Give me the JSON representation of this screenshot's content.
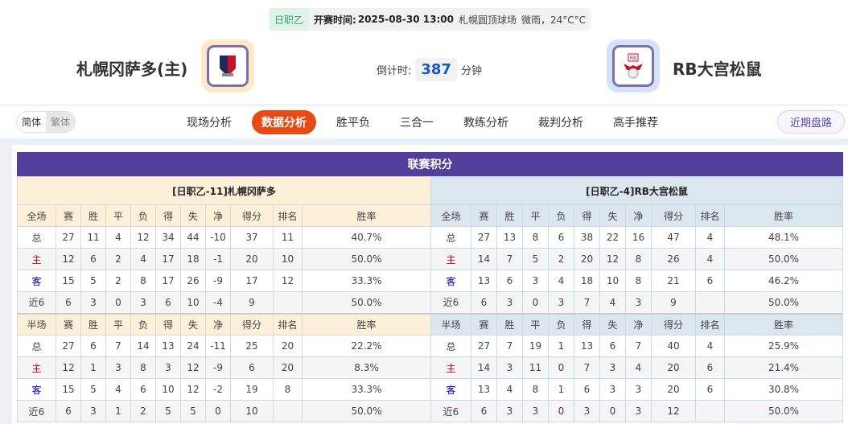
{
  "match": {
    "league": "日职乙",
    "kickoff_label": "开赛时间:",
    "kickoff": "2025-08-30 13:00",
    "venue": "札幌圆顶球场",
    "weather": "微雨，24°C°C"
  },
  "home": {
    "name": "札幌冈萨多(主)",
    "logo": "consadole-sapporo-crest"
  },
  "away": {
    "name": "RB大宫松鼠",
    "logo": "rb-omiya-crest"
  },
  "countdown": {
    "label": "倒计时:",
    "value": "387",
    "unit": "分钟"
  },
  "lang": {
    "simplified": "简体",
    "traditional": "繁体"
  },
  "tabs": [
    "现场分析",
    "数据分析",
    "胜平负",
    "三合一",
    "教练分析",
    "裁判分析",
    "高手推荐"
  ],
  "active_tab": 1,
  "recent_button": "近期盘路",
  "section_title": "联赛积分",
  "colors": {
    "accent": "#e84a16",
    "title_bar": "#533f9b",
    "home_header": "#fdf0d8",
    "away_header": "#dbe6ee"
  },
  "columns_full": [
    "全场",
    "赛",
    "胜",
    "平",
    "负",
    "得",
    "失",
    "净",
    "得分",
    "排名",
    "胜率"
  ],
  "columns_half": [
    "半场",
    "赛",
    "胜",
    "平",
    "负",
    "得",
    "失",
    "净",
    "得分",
    "排名",
    "胜率"
  ],
  "home_table": {
    "title": "[日职乙-11]札幌冈萨多",
    "full": [
      [
        "总",
        "27",
        "11",
        "4",
        "12",
        "34",
        "44",
        "-10",
        "37",
        "11",
        "40.7%"
      ],
      [
        "主",
        "12",
        "6",
        "2",
        "4",
        "17",
        "18",
        "-1",
        "20",
        "10",
        "50.0%"
      ],
      [
        "客",
        "15",
        "5",
        "2",
        "8",
        "17",
        "26",
        "-9",
        "17",
        "12",
        "33.3%"
      ],
      [
        "近6",
        "6",
        "3",
        "0",
        "3",
        "6",
        "10",
        "-4",
        "9",
        "",
        "50.0%"
      ]
    ],
    "half": [
      [
        "总",
        "27",
        "6",
        "7",
        "14",
        "13",
        "24",
        "-11",
        "25",
        "20",
        "22.2%"
      ],
      [
        "主",
        "12",
        "1",
        "3",
        "8",
        "3",
        "12",
        "-9",
        "6",
        "20",
        "8.3%"
      ],
      [
        "客",
        "15",
        "5",
        "4",
        "6",
        "10",
        "12",
        "-2",
        "19",
        "8",
        "33.3%"
      ],
      [
        "近6",
        "6",
        "3",
        "1",
        "2",
        "5",
        "5",
        "0",
        "10",
        "",
        "50.0%"
      ]
    ]
  },
  "away_table": {
    "title": "[日职乙-4]RB大宫松鼠",
    "full": [
      [
        "总",
        "27",
        "13",
        "8",
        "6",
        "38",
        "22",
        "16",
        "47",
        "4",
        "48.1%"
      ],
      [
        "主",
        "14",
        "7",
        "5",
        "2",
        "20",
        "12",
        "8",
        "26",
        "4",
        "50.0%"
      ],
      [
        "客",
        "13",
        "6",
        "3",
        "4",
        "18",
        "10",
        "8",
        "21",
        "6",
        "46.2%"
      ],
      [
        "近6",
        "6",
        "3",
        "0",
        "3",
        "7",
        "4",
        "3",
        "9",
        "",
        "50.0%"
      ]
    ],
    "half": [
      [
        "总",
        "27",
        "7",
        "19",
        "1",
        "13",
        "6",
        "7",
        "40",
        "4",
        "25.9%"
      ],
      [
        "主",
        "14",
        "3",
        "11",
        "0",
        "7",
        "3",
        "4",
        "20",
        "6",
        "21.4%"
      ],
      [
        "客",
        "13",
        "4",
        "8",
        "1",
        "6",
        "3",
        "3",
        "20",
        "6",
        "30.8%"
      ],
      [
        "近6",
        "6",
        "3",
        "3",
        "0",
        "3",
        "0",
        "3",
        "12",
        "",
        "50.0%"
      ]
    ]
  }
}
